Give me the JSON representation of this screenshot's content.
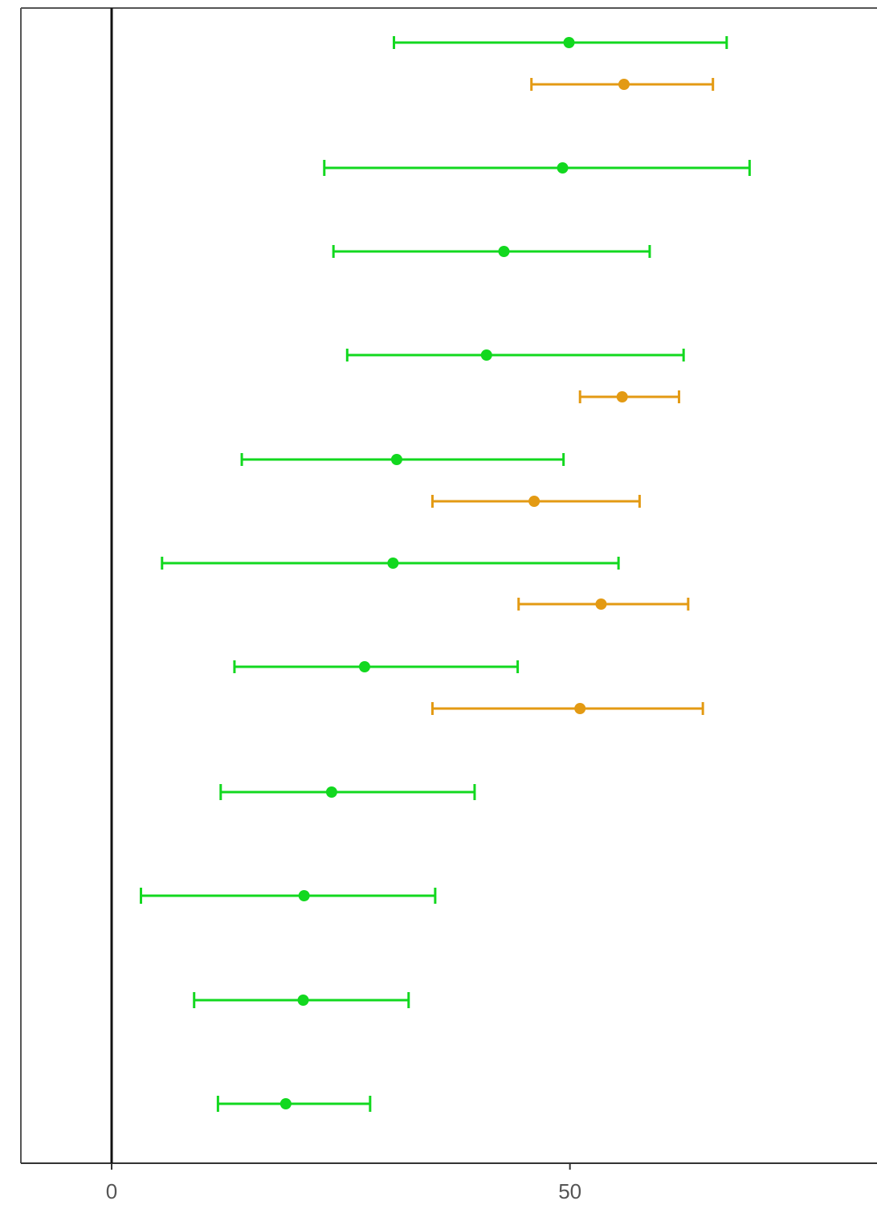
{
  "chart_data": {
    "type": "forest",
    "xlim": [
      -9.9,
      83.5
    ],
    "xticks": [
      {
        "value": 0,
        "label": "0"
      },
      {
        "value": 50,
        "label": "50"
      }
    ],
    "reference_line_x": 0,
    "grid": false,
    "legend": "none",
    "colors": {
      "green": "#12d81f",
      "orange": "#e39a13"
    },
    "rows": [
      {
        "series": "green",
        "estimate": 49.9,
        "lower": 30.8,
        "upper": 67.1
      },
      {
        "series": "orange",
        "estimate": 55.9,
        "lower": 45.8,
        "upper": 65.6
      },
      {
        "series": "green",
        "estimate": 49.2,
        "lower": 23.2,
        "upper": 69.6
      },
      {
        "series": "green",
        "estimate": 42.8,
        "lower": 24.2,
        "upper": 58.7
      },
      {
        "series": "green",
        "estimate": 40.9,
        "lower": 25.7,
        "upper": 62.4
      },
      {
        "series": "orange",
        "estimate": 55.7,
        "lower": 51.1,
        "upper": 61.9
      },
      {
        "series": "green",
        "estimate": 31.1,
        "lower": 14.2,
        "upper": 49.3
      },
      {
        "series": "orange",
        "estimate": 46.1,
        "lower": 35.0,
        "upper": 57.6
      },
      {
        "series": "green",
        "estimate": 30.7,
        "lower": 5.5,
        "upper": 55.3
      },
      {
        "series": "orange",
        "estimate": 53.4,
        "lower": 44.4,
        "upper": 62.9
      },
      {
        "series": "green",
        "estimate": 27.6,
        "lower": 13.4,
        "upper": 44.3
      },
      {
        "series": "orange",
        "estimate": 51.1,
        "lower": 35.0,
        "upper": 64.5
      },
      {
        "series": "green",
        "estimate": 24.0,
        "lower": 11.9,
        "upper": 39.6
      },
      {
        "series": "green",
        "estimate": 21.0,
        "lower": 3.2,
        "upper": 35.3
      },
      {
        "series": "green",
        "estimate": 20.9,
        "lower": 9.0,
        "upper": 32.4
      },
      {
        "series": "green",
        "estimate": 19.0,
        "lower": 11.6,
        "upper": 28.2
      }
    ]
  }
}
